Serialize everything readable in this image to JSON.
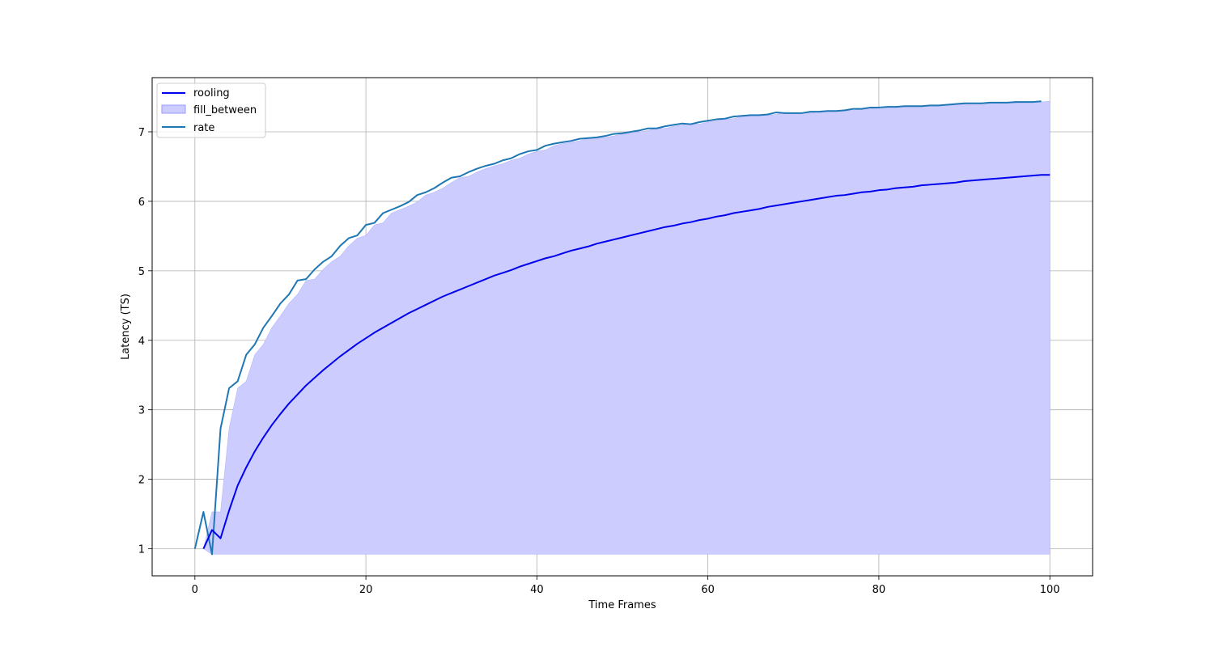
{
  "chart_data": {
    "type": "line",
    "title": "",
    "xlabel": "Time Frames",
    "ylabel": "Latency (TS)",
    "xlim": [
      -5,
      105
    ],
    "ylim": [
      0.61,
      7.78
    ],
    "xticks": [
      "0",
      "20",
      "40",
      "60",
      "80",
      "100"
    ],
    "yticks": [
      "1",
      "2",
      "3",
      "4",
      "5",
      "6",
      "7"
    ],
    "grid": true,
    "legend_position": "upper-left",
    "legend": [
      "rooling",
      "fill_between",
      "rate"
    ],
    "colors": {
      "rooling": "#0000ee",
      "fill_between": "#ccccff",
      "fill_edge": "#9999ff",
      "rate": "#1f77b4",
      "grid": "#b0b0b0"
    },
    "series": [
      {
        "name": "rate",
        "x": [
          0,
          1,
          2,
          3,
          4,
          5,
          6,
          7,
          8,
          9,
          10,
          11,
          12,
          13,
          14,
          15,
          16,
          17,
          18,
          19,
          20,
          21,
          22,
          23,
          24,
          25,
          26,
          27,
          28,
          29,
          30,
          31,
          32,
          33,
          34,
          35,
          36,
          37,
          38,
          39,
          40,
          41,
          42,
          43,
          44,
          45,
          46,
          47,
          48,
          49,
          50,
          51,
          52,
          53,
          54,
          55,
          56,
          57,
          58,
          59,
          60,
          61,
          62,
          63,
          64,
          65,
          66,
          67,
          68,
          69,
          70,
          71,
          72,
          73,
          74,
          75,
          76,
          77,
          78,
          79,
          80,
          81,
          82,
          83,
          84,
          85,
          86,
          87,
          88,
          89,
          90,
          91,
          92,
          93,
          94,
          95,
          96,
          97,
          98,
          99
        ],
        "y": [
          1.0,
          1.53,
          0.92,
          2.73,
          3.31,
          3.41,
          3.79,
          3.94,
          4.18,
          4.35,
          4.53,
          4.66,
          4.86,
          4.88,
          5.02,
          5.13,
          5.21,
          5.36,
          5.47,
          5.51,
          5.66,
          5.69,
          5.83,
          5.88,
          5.93,
          5.99,
          6.09,
          6.13,
          6.19,
          6.27,
          6.34,
          6.36,
          6.42,
          6.47,
          6.51,
          6.54,
          6.59,
          6.62,
          6.68,
          6.72,
          6.74,
          6.8,
          6.83,
          6.85,
          6.87,
          6.9,
          6.91,
          6.92,
          6.94,
          6.97,
          6.98,
          7.0,
          7.02,
          7.05,
          7.05,
          7.08,
          7.1,
          7.12,
          7.11,
          7.14,
          7.16,
          7.18,
          7.19,
          7.22,
          7.23,
          7.24,
          7.24,
          7.25,
          7.28,
          7.27,
          7.27,
          7.27,
          7.29,
          7.29,
          7.3,
          7.3,
          7.31,
          7.33,
          7.33,
          7.35,
          7.35,
          7.36,
          7.36,
          7.37,
          7.37,
          7.37,
          7.38,
          7.38,
          7.39,
          7.4,
          7.41,
          7.41,
          7.41,
          7.42,
          7.42,
          7.42,
          7.43,
          7.43,
          7.43,
          7.44
        ]
      },
      {
        "name": "rooling",
        "x": [
          1,
          2,
          3,
          4,
          5,
          6,
          7,
          8,
          9,
          10,
          11,
          12,
          13,
          14,
          15,
          16,
          17,
          18,
          19,
          20,
          21,
          22,
          23,
          24,
          25,
          26,
          27,
          28,
          29,
          30,
          31,
          32,
          33,
          34,
          35,
          36,
          37,
          38,
          39,
          40,
          41,
          42,
          43,
          44,
          45,
          46,
          47,
          48,
          49,
          50,
          51,
          52,
          53,
          54,
          55,
          56,
          57,
          58,
          59,
          60,
          61,
          62,
          63,
          64,
          65,
          66,
          67,
          68,
          69,
          70,
          71,
          72,
          73,
          74,
          75,
          76,
          77,
          78,
          79,
          80,
          81,
          82,
          83,
          84,
          85,
          86,
          87,
          88,
          89,
          90,
          91,
          92,
          93,
          94,
          95,
          96,
          97,
          98,
          99,
          100
        ],
        "y": [
          1.0,
          1.27,
          1.15,
          1.55,
          1.91,
          2.17,
          2.4,
          2.6,
          2.78,
          2.94,
          3.09,
          3.22,
          3.35,
          3.46,
          3.57,
          3.67,
          3.77,
          3.86,
          3.95,
          4.03,
          4.11,
          4.18,
          4.25,
          4.32,
          4.39,
          4.45,
          4.51,
          4.57,
          4.63,
          4.68,
          4.73,
          4.78,
          4.83,
          4.88,
          4.93,
          4.97,
          5.01,
          5.06,
          5.1,
          5.14,
          5.18,
          5.21,
          5.25,
          5.29,
          5.32,
          5.35,
          5.39,
          5.42,
          5.45,
          5.48,
          5.51,
          5.54,
          5.57,
          5.6,
          5.63,
          5.65,
          5.68,
          5.7,
          5.73,
          5.75,
          5.78,
          5.8,
          5.83,
          5.85,
          5.87,
          5.89,
          5.92,
          5.94,
          5.96,
          5.98,
          6.0,
          6.02,
          6.04,
          6.06,
          6.08,
          6.09,
          6.11,
          6.13,
          6.14,
          6.16,
          6.17,
          6.19,
          6.2,
          6.21,
          6.23,
          6.24,
          6.25,
          6.26,
          6.27,
          6.29,
          6.3,
          6.31,
          6.32,
          6.33,
          6.34,
          6.35,
          6.36,
          6.37,
          6.38,
          6.38
        ]
      },
      {
        "name": "fill_between",
        "x": [
          1,
          2,
          3,
          4,
          5,
          6,
          7,
          8,
          9,
          10,
          11,
          12,
          13,
          14,
          15,
          16,
          17,
          18,
          19,
          20,
          21,
          22,
          23,
          24,
          25,
          26,
          27,
          28,
          29,
          30,
          31,
          32,
          33,
          34,
          35,
          36,
          37,
          38,
          39,
          40,
          41,
          42,
          43,
          44,
          45,
          46,
          47,
          48,
          49,
          50,
          51,
          52,
          53,
          54,
          55,
          56,
          57,
          58,
          59,
          60,
          61,
          62,
          63,
          64,
          65,
          66,
          67,
          68,
          69,
          70,
          71,
          72,
          73,
          74,
          75,
          76,
          77,
          78,
          79,
          80,
          81,
          82,
          83,
          84,
          85,
          86,
          87,
          88,
          89,
          90,
          91,
          92,
          93,
          94,
          95,
          96,
          97,
          98,
          99,
          100
        ],
        "lower": [
          1.0,
          0.92,
          0.92,
          0.92,
          0.92,
          0.92,
          0.92,
          0.92,
          0.92,
          0.92,
          0.92,
          0.92,
          0.92,
          0.92,
          0.92,
          0.92,
          0.92,
          0.92,
          0.92,
          0.92,
          0.92,
          0.92,
          0.92,
          0.92,
          0.92,
          0.92,
          0.92,
          0.92,
          0.92,
          0.92,
          0.92,
          0.92,
          0.92,
          0.92,
          0.92,
          0.92,
          0.92,
          0.92,
          0.92,
          0.92,
          0.92,
          0.92,
          0.92,
          0.92,
          0.92,
          0.92,
          0.92,
          0.92,
          0.92,
          0.92,
          0.92,
          0.92,
          0.92,
          0.92,
          0.92,
          0.92,
          0.92,
          0.92,
          0.92,
          0.92,
          0.92,
          0.92,
          0.92,
          0.92,
          0.92,
          0.92,
          0.92,
          0.92,
          0.92,
          0.92,
          0.92,
          0.92,
          0.92,
          0.92,
          0.92,
          0.92,
          0.92,
          0.92,
          0.92,
          0.92,
          0.92,
          0.92,
          0.92,
          0.92,
          0.92,
          0.92,
          0.92,
          0.92,
          0.92,
          0.92,
          0.92,
          0.92,
          0.92,
          0.92,
          0.92,
          0.92,
          0.92,
          0.92,
          0.92,
          0.92
        ],
        "upper": [
          1.0,
          1.53,
          1.53,
          2.73,
          3.31,
          3.41,
          3.79,
          3.94,
          4.18,
          4.35,
          4.53,
          4.66,
          4.86,
          4.88,
          5.02,
          5.13,
          5.21,
          5.36,
          5.47,
          5.51,
          5.66,
          5.69,
          5.83,
          5.88,
          5.93,
          5.99,
          6.09,
          6.13,
          6.19,
          6.27,
          6.34,
          6.36,
          6.42,
          6.47,
          6.51,
          6.54,
          6.59,
          6.62,
          6.68,
          6.72,
          6.74,
          6.8,
          6.83,
          6.85,
          6.87,
          6.9,
          6.91,
          6.92,
          6.94,
          6.97,
          6.98,
          7.0,
          7.02,
          7.05,
          7.05,
          7.08,
          7.1,
          7.12,
          7.11,
          7.14,
          7.16,
          7.18,
          7.19,
          7.22,
          7.23,
          7.24,
          7.24,
          7.25,
          7.28,
          7.27,
          7.27,
          7.27,
          7.29,
          7.29,
          7.3,
          7.3,
          7.31,
          7.33,
          7.33,
          7.35,
          7.35,
          7.36,
          7.36,
          7.37,
          7.37,
          7.37,
          7.38,
          7.38,
          7.39,
          7.4,
          7.41,
          7.41,
          7.41,
          7.42,
          7.42,
          7.42,
          7.43,
          7.43,
          7.43,
          7.44
        ]
      }
    ]
  }
}
